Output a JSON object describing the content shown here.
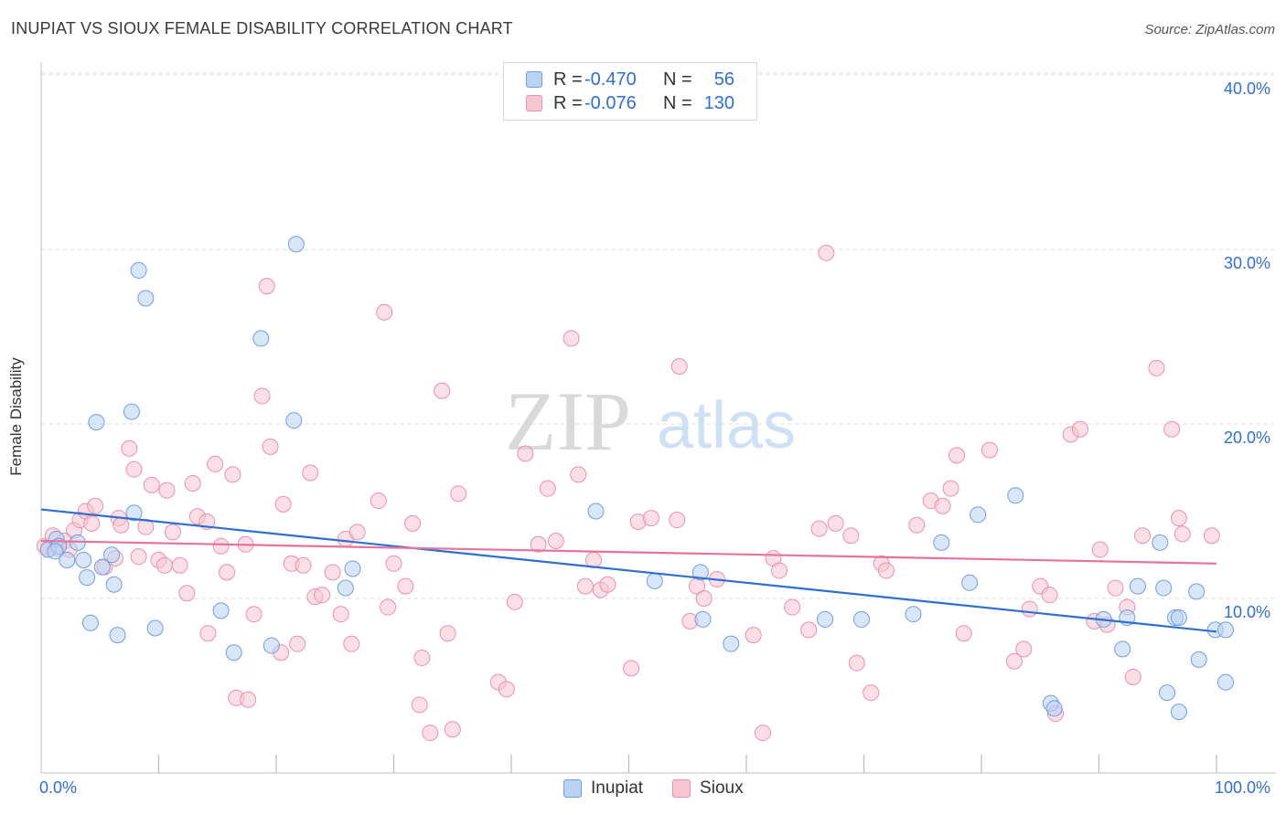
{
  "title": "INUPIAT VS SIOUX FEMALE DISABILITY CORRELATION CHART",
  "source": "Source: ZipAtlas.com",
  "watermark": {
    "zip": "ZIP",
    "atlas": "atlas"
  },
  "legend": {
    "rows": [
      {
        "r_label": "R =",
        "r_value": "-0.470",
        "n_label": "N =",
        "n_value": "56"
      },
      {
        "r_label": "R =",
        "r_value": "-0.076",
        "n_label": "N =",
        "n_value": "130"
      }
    ]
  },
  "colors": {
    "inupiat_fill": "#b9d2f3",
    "inupiat_stroke": "#6f9fe0",
    "inupiat_line": "#2f6fd0",
    "sioux_fill": "#f8c4d4",
    "sioux_stroke": "#ec90ad",
    "sioux_line": "#e5739a",
    "tick_text": "#2f6fd0",
    "grid": "#dddddd"
  },
  "chart_data": {
    "type": "scatter",
    "title": "INUPIAT VS SIOUX FEMALE DISABILITY CORRELATION CHART",
    "xlabel": "",
    "ylabel": "Female Disability",
    "xlim": [
      0,
      100
    ],
    "ylim": [
      0,
      40
    ],
    "x_tick_labels": [
      "0.0%",
      "100.0%"
    ],
    "y_ticks": [
      10,
      20,
      30,
      40
    ],
    "y_tick_labels": [
      "10.0%",
      "20.0%",
      "30.0%",
      "40.0%"
    ],
    "grid": true,
    "legend_position": "bottom",
    "series": [
      {
        "name": "Inupiat",
        "r": -0.47,
        "n": 56,
        "trend": {
          "x": [
            0,
            100
          ],
          "y": [
            15.1,
            8.1
          ]
        },
        "points": [
          [
            0.6,
            12.8
          ],
          [
            1.3,
            13.4
          ],
          [
            1.5,
            13.0
          ],
          [
            2.2,
            12.2
          ],
          [
            3.1,
            13.2
          ],
          [
            3.6,
            12.2
          ],
          [
            3.9,
            11.2
          ],
          [
            4.2,
            8.6
          ],
          [
            4.7,
            20.1
          ],
          [
            5.2,
            11.8
          ],
          [
            6.0,
            12.5
          ],
          [
            6.2,
            10.8
          ],
          [
            6.5,
            7.9
          ],
          [
            7.7,
            20.7
          ],
          [
            7.9,
            14.9
          ],
          [
            8.3,
            28.8
          ],
          [
            8.9,
            27.2
          ],
          [
            9.7,
            8.3
          ],
          [
            15.3,
            9.3
          ],
          [
            16.4,
            6.9
          ],
          [
            18.7,
            24.9
          ],
          [
            19.6,
            7.3
          ],
          [
            21.5,
            20.2
          ],
          [
            21.7,
            30.3
          ],
          [
            25.9,
            10.6
          ],
          [
            26.5,
            11.7
          ],
          [
            47.2,
            15.0
          ],
          [
            52.2,
            11.0
          ],
          [
            56.1,
            11.5
          ],
          [
            56.3,
            8.8
          ],
          [
            58.7,
            7.4
          ],
          [
            66.7,
            8.8
          ],
          [
            69.8,
            8.8
          ],
          [
            74.2,
            9.1
          ],
          [
            76.6,
            13.2
          ],
          [
            79.0,
            10.9
          ],
          [
            79.7,
            14.8
          ],
          [
            82.9,
            15.9
          ],
          [
            85.9,
            4.0
          ],
          [
            86.2,
            3.7
          ],
          [
            90.4,
            8.8
          ],
          [
            92.0,
            7.1
          ],
          [
            92.4,
            8.9
          ],
          [
            93.3,
            10.7
          ],
          [
            95.2,
            13.2
          ],
          [
            95.5,
            10.6
          ],
          [
            95.8,
            4.6
          ],
          [
            96.5,
            8.9
          ],
          [
            96.8,
            8.9
          ],
          [
            98.3,
            10.4
          ],
          [
            98.5,
            6.5
          ],
          [
            96.8,
            3.5
          ],
          [
            99.9,
            8.2
          ],
          [
            101.0,
            8.2
          ],
          [
            102.6,
            5.2
          ],
          [
            1.2,
            12.7
          ]
        ]
      },
      {
        "name": "Sioux",
        "r": -0.076,
        "n": 130,
        "trend": {
          "x": [
            0,
            100
          ],
          "y": [
            13.3,
            12.0
          ]
        },
        "points": [
          [
            0.3,
            13.0
          ],
          [
            0.6,
            12.8
          ],
          [
            1.0,
            13.6
          ],
          [
            1.4,
            12.9
          ],
          [
            2.0,
            13.3
          ],
          [
            2.4,
            12.8
          ],
          [
            2.8,
            13.9
          ],
          [
            3.3,
            14.5
          ],
          [
            3.8,
            15.0
          ],
          [
            4.3,
            14.3
          ],
          [
            4.6,
            15.3
          ],
          [
            5.4,
            11.8
          ],
          [
            6.3,
            12.3
          ],
          [
            6.6,
            14.6
          ],
          [
            6.8,
            14.2
          ],
          [
            7.5,
            18.6
          ],
          [
            7.9,
            17.4
          ],
          [
            8.3,
            12.4
          ],
          [
            8.9,
            14.1
          ],
          [
            9.4,
            16.5
          ],
          [
            10.0,
            12.2
          ],
          [
            10.5,
            11.9
          ],
          [
            10.7,
            16.2
          ],
          [
            11.2,
            13.8
          ],
          [
            11.8,
            11.9
          ],
          [
            12.4,
            10.3
          ],
          [
            12.9,
            16.6
          ],
          [
            13.3,
            14.7
          ],
          [
            14.1,
            14.4
          ],
          [
            14.2,
            8.0
          ],
          [
            14.8,
            17.7
          ],
          [
            15.3,
            13.0
          ],
          [
            15.8,
            11.5
          ],
          [
            16.3,
            17.1
          ],
          [
            16.6,
            4.3
          ],
          [
            17.4,
            13.1
          ],
          [
            17.6,
            4.2
          ],
          [
            18.1,
            9.1
          ],
          [
            18.8,
            21.6
          ],
          [
            19.2,
            27.9
          ],
          [
            19.5,
            18.7
          ],
          [
            20.4,
            6.9
          ],
          [
            20.6,
            15.4
          ],
          [
            21.3,
            12.0
          ],
          [
            21.8,
            7.4
          ],
          [
            22.3,
            11.9
          ],
          [
            22.9,
            17.2
          ],
          [
            23.3,
            10.1
          ],
          [
            23.9,
            10.2
          ],
          [
            24.8,
            11.5
          ],
          [
            25.5,
            9.1
          ],
          [
            25.9,
            13.4
          ],
          [
            26.4,
            7.4
          ],
          [
            26.9,
            13.8
          ],
          [
            28.7,
            15.6
          ],
          [
            29.2,
            26.4
          ],
          [
            29.5,
            9.5
          ],
          [
            30.0,
            12.0
          ],
          [
            31.0,
            10.7
          ],
          [
            31.6,
            14.3
          ],
          [
            32.2,
            3.9
          ],
          [
            32.4,
            6.6
          ],
          [
            33.1,
            2.3
          ],
          [
            34.1,
            21.9
          ],
          [
            34.6,
            8.0
          ],
          [
            35.0,
            2.5
          ],
          [
            35.5,
            16.0
          ],
          [
            38.9,
            5.2
          ],
          [
            39.6,
            4.8
          ],
          [
            40.3,
            9.8
          ],
          [
            41.2,
            18.3
          ],
          [
            42.3,
            13.1
          ],
          [
            43.1,
            16.3
          ],
          [
            43.8,
            13.3
          ],
          [
            45.1,
            24.9
          ],
          [
            45.7,
            17.1
          ],
          [
            46.3,
            10.7
          ],
          [
            47.0,
            12.2
          ],
          [
            47.6,
            10.5
          ],
          [
            48.2,
            10.8
          ],
          [
            50.2,
            6.0
          ],
          [
            50.8,
            14.4
          ],
          [
            51.9,
            14.6
          ],
          [
            54.3,
            23.3
          ],
          [
            54.1,
            14.5
          ],
          [
            55.2,
            8.7
          ],
          [
            55.8,
            10.7
          ],
          [
            56.4,
            10.0
          ],
          [
            57.5,
            11.1
          ],
          [
            60.6,
            7.9
          ],
          [
            61.4,
            2.3
          ],
          [
            62.3,
            12.3
          ],
          [
            62.8,
            11.6
          ],
          [
            63.9,
            9.5
          ],
          [
            65.3,
            8.2
          ],
          [
            66.2,
            14.0
          ],
          [
            66.8,
            29.8
          ],
          [
            67.6,
            14.3
          ],
          [
            68.9,
            13.6
          ],
          [
            69.4,
            6.3
          ],
          [
            70.6,
            4.6
          ],
          [
            71.5,
            12.0
          ],
          [
            71.9,
            11.6
          ],
          [
            74.5,
            14.2
          ],
          [
            75.7,
            15.6
          ],
          [
            76.7,
            15.3
          ],
          [
            77.4,
            16.3
          ],
          [
            77.9,
            18.2
          ],
          [
            78.5,
            8.0
          ],
          [
            80.7,
            18.5
          ],
          [
            82.8,
            6.4
          ],
          [
            83.6,
            7.1
          ],
          [
            84.1,
            9.4
          ],
          [
            85.0,
            10.7
          ],
          [
            85.8,
            10.2
          ],
          [
            86.3,
            3.4
          ],
          [
            87.6,
            19.4
          ],
          [
            88.4,
            19.7
          ],
          [
            89.6,
            8.7
          ],
          [
            90.1,
            12.8
          ],
          [
            90.7,
            8.5
          ],
          [
            91.4,
            10.6
          ],
          [
            92.4,
            9.5
          ],
          [
            92.9,
            5.5
          ],
          [
            93.7,
            13.6
          ],
          [
            94.9,
            23.2
          ],
          [
            96.2,
            19.7
          ],
          [
            96.8,
            14.6
          ],
          [
            97.1,
            13.7
          ],
          [
            99.6,
            13.6
          ]
        ]
      }
    ]
  }
}
